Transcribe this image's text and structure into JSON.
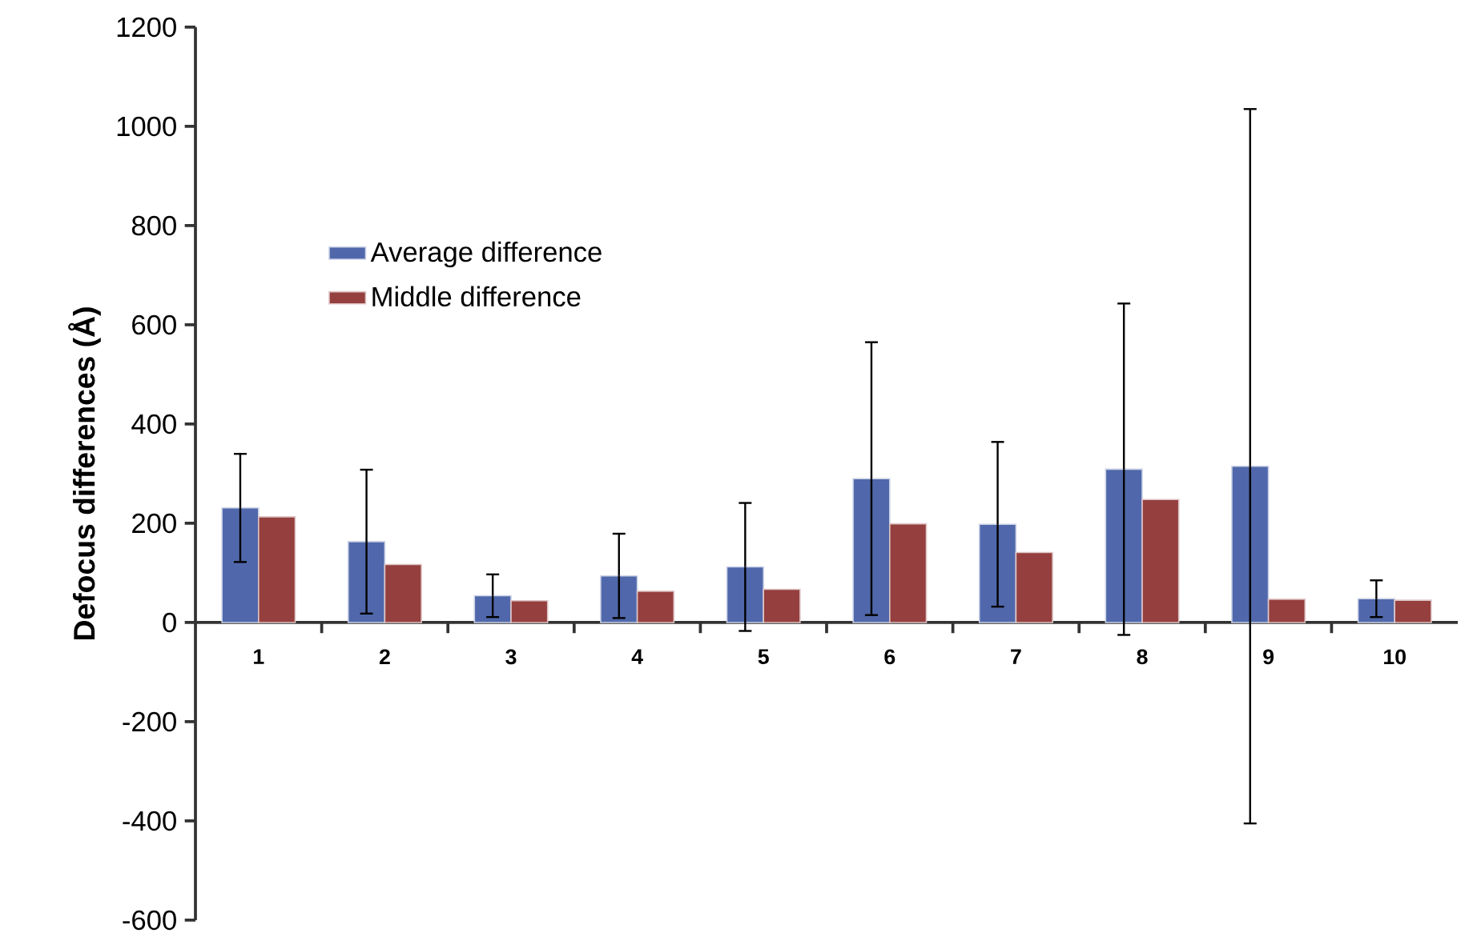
{
  "chart_data": {
    "type": "bar",
    "ylabel": "Defocus differences (Å)",
    "categories": [
      "1",
      "2",
      "3",
      "4",
      "5",
      "6",
      "7",
      "8",
      "9",
      "10"
    ],
    "series": [
      {
        "name": "Average difference",
        "color": "#5068ab",
        "values": [
          231,
          163,
          54,
          94,
          112,
          290,
          198,
          309,
          315,
          48
        ],
        "errors": [
          109,
          145,
          43,
          85,
          129,
          275,
          166,
          334,
          720,
          37
        ]
      },
      {
        "name": "Middle difference",
        "color": "#953f3f",
        "values": [
          213,
          117,
          44,
          63,
          67,
          199,
          141,
          248,
          47,
          45
        ]
      }
    ],
    "ylim": [
      -600,
      1200
    ],
    "yticks": [
      -600,
      -400,
      -200,
      0,
      200,
      400,
      600,
      800,
      1000,
      1200
    ],
    "grid": false,
    "legend": "top left"
  }
}
